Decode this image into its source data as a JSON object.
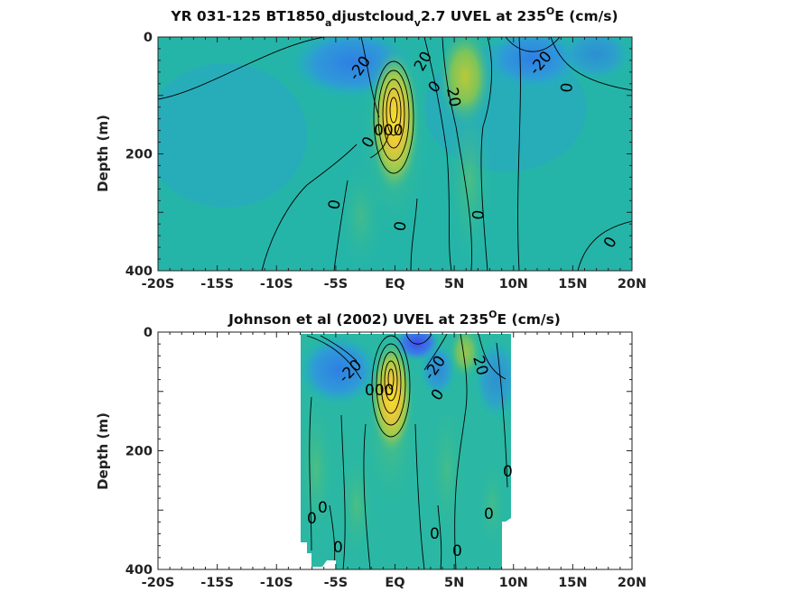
{
  "chart_data": [
    {
      "type": "heatmap",
      "title": "YR 031-125 BT1850_adjustcloud_v2.7 UVEL at 235°E (cm/s)",
      "title_parts": {
        "pre_a": "YR 031-125 BT1850",
        "sub_a": "a",
        "mid": "djustcloud",
        "sub_v": "v",
        "post": "2.7 UVEL at 235",
        "sup": "O",
        "end": "E (cm/s)"
      },
      "ylabel": "Depth (m)",
      "xlabel": "",
      "x_ticks": [
        "-20S",
        "-15S",
        "-10S",
        "-5S",
        "EQ",
        "5N",
        "10N",
        "15N",
        "20N"
      ],
      "y_ticks": [
        "0",
        "200",
        "400"
      ],
      "xlim": [
        -20,
        20
      ],
      "ylim": [
        0,
        400
      ],
      "y_reversed": true,
      "contour_labels": [
        "-20",
        "20",
        "0",
        "-20",
        "0",
        "20",
        "0",
        "0",
        "0",
        "0",
        "0"
      ],
      "features": [
        {
          "kind": "eastward_core",
          "lat": -0.5,
          "depth": 120,
          "max_cms": 80
        },
        {
          "kind": "westward_surface",
          "lat": -4,
          "depth": 20,
          "min_cms": -30
        },
        {
          "kind": "westward_surface",
          "lat": 12,
          "depth": 40,
          "min_cms": -30
        },
        {
          "kind": "eastward_countercurrent",
          "lat": 6,
          "depth": 60,
          "max_cms": 30
        }
      ]
    },
    {
      "type": "heatmap",
      "title": "Johnson et al (2002) UVEL at 235°E (cm/s)",
      "title_parts": {
        "pre": "Johnson et al (2002) UVEL at 235",
        "sup": "O",
        "end": "E (cm/s)"
      },
      "ylabel": "Depth (m)",
      "xlabel": "",
      "x_ticks": [
        "-20S",
        "-15S",
        "-10S",
        "-5S",
        "EQ",
        "5N",
        "10N",
        "15N",
        "20N"
      ],
      "y_ticks": [
        "0",
        "200",
        "400"
      ],
      "xlim": [
        -20,
        20
      ],
      "ylim": [
        0,
        400
      ],
      "y_reversed": true,
      "data_extent_lat": [
        -8,
        10
      ],
      "contour_labels": [
        "-20",
        "-20",
        "20",
        "0",
        "0",
        "0",
        "0",
        "0",
        "0",
        "0",
        "0"
      ],
      "features": [
        {
          "kind": "eastward_core",
          "lat": 0,
          "depth": 100,
          "max_cms": 90
        },
        {
          "kind": "westward_surface",
          "lat": 2,
          "depth": 10,
          "min_cms": -40
        },
        {
          "kind": "westward_surface",
          "lat": -4,
          "depth": 30,
          "min_cms": -25
        },
        {
          "kind": "eastward_countercurrent",
          "lat": 7,
          "depth": 40,
          "max_cms": 25
        }
      ]
    }
  ]
}
